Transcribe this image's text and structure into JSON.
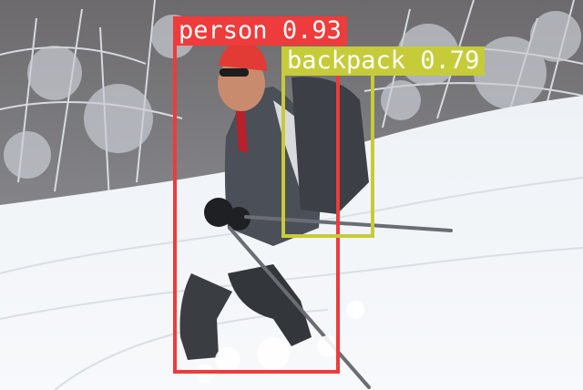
{
  "detections": [
    {
      "label": "person",
      "score": "0.93",
      "color": "#ee3b3b"
    },
    {
      "label": "backpack",
      "score": "0.79",
      "color": "#c6cb3a"
    }
  ]
}
